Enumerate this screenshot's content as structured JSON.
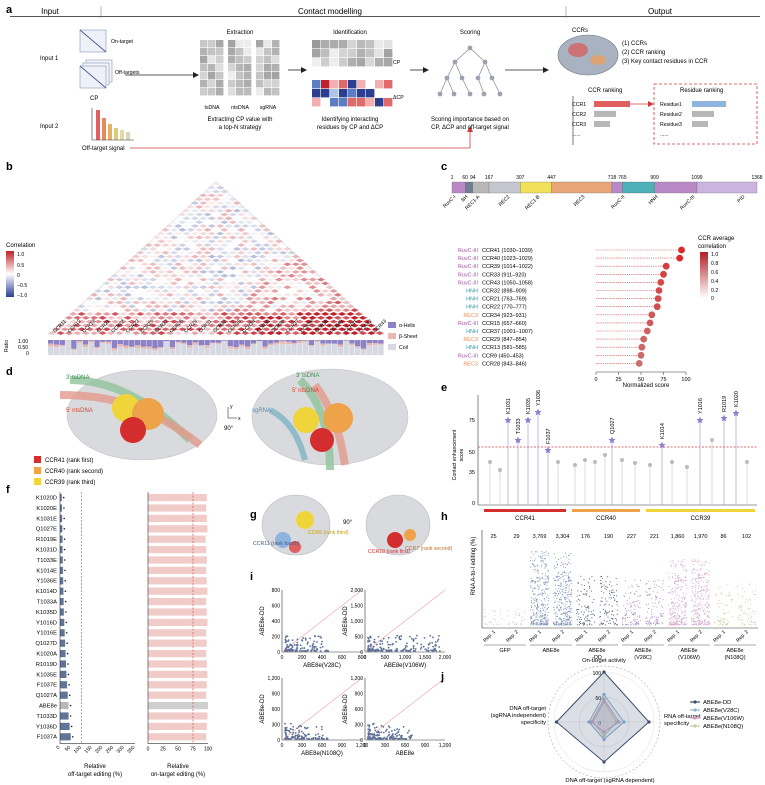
{
  "panel_a": {
    "letter": "a",
    "headers": {
      "input": "Input",
      "contact_modelling": "Contact modelling",
      "output": "Output"
    },
    "input1_label": "Input 1",
    "input2_label": "Input 2",
    "on_target": "On-target",
    "off_targets": "Off-targets",
    "cp": "CP",
    "off_target_signal": "Off-target signal",
    "extraction_title": "Extraction",
    "extraction_cols": [
      "tsDNA",
      "ntsDNA",
      "sgRNA"
    ],
    "extraction_caption": [
      "Extracting CP value with",
      "a top-N strategy"
    ],
    "identification_title": "Identification",
    "identification_cp": "CP",
    "identification_dcp": "ΔCP",
    "identification_caption": [
      "Identifying interacting",
      "residues by CP and ΔCP"
    ],
    "scoring_title": "Scoring",
    "scoring_caption": [
      "Scoring importance based on",
      "CP, ΔCP and off-target signal"
    ],
    "ccrs_label": "CCRs",
    "outputs": [
      "(1) CCRs",
      "(2) CCR ranking",
      "(3) Key contact residues in CCR"
    ],
    "ccr_ranking_title": "CCR ranking",
    "residue_ranking_title": "Residue ranking",
    "ccr_items": [
      "CCR1",
      "CCR2",
      "CCR3",
      "......"
    ],
    "residue_items": [
      "Residue1",
      "Residue2",
      "Residue3",
      "......"
    ]
  },
  "panel_b": {
    "letter": "b",
    "legend_title": "Correlation",
    "legend_ticks": [
      "1.0",
      "0.5",
      "0",
      "−0.5",
      "−1.0"
    ],
    "ccr_labels": [
      "CCR11",
      "CCR12",
      "CCR13",
      "CCR21",
      "CCR22",
      "CCR23",
      "CCR25",
      "CCR27",
      "CCR28",
      "CCR29",
      "CCR31",
      "CCR32",
      "CCR33",
      "CCR34",
      "CCR35",
      "CCR36",
      "CCR37",
      "CCR38",
      "CCR39",
      "CCR40",
      "CCR41",
      "CCR42",
      "CCR43"
    ],
    "ratio_label": "Ratio",
    "ratio_ticks": [
      "1.00",
      "0.50",
      "0"
    ],
    "ss_legend": [
      "α-Helix",
      "β-Sheet",
      "Coil"
    ]
  },
  "panel_c": {
    "letter": "c",
    "domain_positions": [
      "1",
      "60",
      "94",
      "167",
      "307",
      "447",
      "718",
      "765",
      "909",
      "1099",
      "1368"
    ],
    "domains": [
      {
        "name": "RuvC-I",
        "color": "#b889c6"
      },
      {
        "name": "BH",
        "color": "#6f7f8f"
      },
      {
        "name": "REC1-A",
        "color": "#b8b8b8"
      },
      {
        "name": "REC2",
        "color": "#c4c7cf"
      },
      {
        "name": "REC1-B",
        "color": "#f0e05a"
      },
      {
        "name": "REC3",
        "color": "#e8a577"
      },
      {
        "name": "RuvC-II",
        "color": "#b889c6"
      },
      {
        "name": "HNH",
        "color": "#4bb0b8"
      },
      {
        "name": "RuvC-III",
        "color": "#b889c6"
      },
      {
        "name": "PID",
        "color": "#cbb4e0"
      }
    ],
    "rows": [
      {
        "domain": "RuvC-III",
        "label": "CCR41 (1030–1039)",
        "score": 95
      },
      {
        "domain": "RuvC-III",
        "label": "CCR40 (1023–1029)",
        "score": 93
      },
      {
        "domain": "RuvC-III",
        "label": "CCR39 (1014–1022)",
        "score": 78
      },
      {
        "domain": "RuvC-III",
        "label": "CCR33 (911–920)",
        "score": 75
      },
      {
        "domain": "RuvC-III",
        "label": "CCR43 (1050–1058)",
        "score": 72
      },
      {
        "domain": "HNH",
        "label": "CCR32 (898–909)",
        "score": 70
      },
      {
        "domain": "HNH",
        "label": "CCR21 (763–769)",
        "score": 69
      },
      {
        "domain": "HNH",
        "label": "CCR22 (770–777)",
        "score": 68
      },
      {
        "domain": "REC3",
        "label": "CCR34 (923–931)",
        "score": 62
      },
      {
        "domain": "RuvC-III",
        "label": "CCR15 (657–660)",
        "score": 60
      },
      {
        "domain": "HNH",
        "label": "CCR37 (1001–1007)",
        "score": 57
      },
      {
        "domain": "REC3",
        "label": "CCR29 (847–854)",
        "score": 53
      },
      {
        "domain": "HNH",
        "label": "CCR13 (581–585)",
        "score": 51
      },
      {
        "domain": "RuvC-III",
        "label": "CCR9 (450–453)",
        "score": 50
      },
      {
        "domain": "REC3",
        "label": "CCR28 (843–846)",
        "score": 48
      }
    ],
    "domain_colors": {
      "RuvC-III": "#a0529d",
      "HNH": "#2e9fa9",
      "REC3": "#e5915c"
    },
    "xlabel": "Normalized score",
    "xticks": [
      "0",
      "25",
      "50",
      "75",
      "100"
    ],
    "legend_title": [
      "CCR average",
      "correlation"
    ],
    "legend_ticks": [
      "1.0",
      "0.8",
      "0.6",
      "0.4",
      "0.2",
      "0"
    ]
  },
  "panel_d": {
    "letter": "d",
    "strands": [
      "3′ tsDNA",
      "5′ ntsDNA",
      "sgRNA"
    ],
    "legend": [
      "CCR41 (rank first)",
      "CCR40 (rank second)",
      "CCR39 (rank third)"
    ],
    "rotation": "90°",
    "axis_x": "x",
    "axis_y": "y"
  },
  "panel_e": {
    "letter": "e",
    "ylabel": [
      "Contact enhancement",
      "score"
    ],
    "yticks": [
      "75",
      "50",
      "35",
      "0"
    ],
    "highlight_labels": [
      "K1031",
      "T1033",
      "K1035",
      "Y1036",
      "F1037",
      "Q1027",
      "K1014",
      "Y1016",
      "R1019",
      "K1020"
    ],
    "groups": [
      "CCR41",
      "CCR40",
      "CCR39"
    ]
  },
  "panel_f": {
    "letter": "f",
    "variants": [
      "K1020D",
      "K1020E",
      "K1031E",
      "Q1027E",
      "R1019E",
      "K1031D",
      "T1033E",
      "K1014E",
      "Y1036E",
      "K1014D",
      "T1033A",
      "K1035D",
      "Y1016D",
      "Y1016E",
      "Q1027D",
      "K1020A",
      "R1019D",
      "K1035E",
      "F1037E",
      "Q1027A",
      "ABE8e",
      "T1033D",
      "Y1036D",
      "F1037A"
    ],
    "off_target_values": [
      8,
      9,
      10,
      11,
      12,
      12,
      13,
      14,
      15,
      16,
      17,
      18,
      20,
      22,
      24,
      26,
      28,
      30,
      33,
      36,
      40,
      40,
      45,
      50
    ],
    "off_target_xlabel": [
      "Relative",
      "off-target editing (%)"
    ],
    "off_target_xticks": [
      "0",
      "50",
      "100",
      "150",
      "200",
      "250",
      "300",
      "350"
    ],
    "on_target_values": [
      98,
      97,
      98,
      99,
      96,
      97,
      98,
      97,
      98,
      99,
      97,
      98,
      99,
      97,
      98,
      97,
      98,
      99,
      98,
      97,
      100,
      99,
      98,
      97
    ],
    "on_target_xlabel": [
      "Relative",
      "on-target editing (%)"
    ],
    "on_target_xticks": [
      "0",
      "25",
      "50",
      "75",
      "100"
    ]
  },
  "panel_g": {
    "letter": "g",
    "labels": [
      "CCR11 (rank fourth)",
      "CCR5 (rank third)",
      "CCR10 (rank first)",
      "CCR7 (rank second)"
    ],
    "rotation": "90°"
  },
  "panel_h": {
    "letter": "h",
    "ylabel": "RNA A-to-I editing (%)",
    "counts": [
      "25",
      "29",
      "3,769",
      "3,304",
      "176",
      "190",
      "227",
      "221",
      "1,860",
      "1,970",
      "86",
      "102"
    ],
    "reps": [
      "Rep. 1",
      "Rep. 2"
    ],
    "groups": [
      "GFP",
      "ABE8e",
      "ABE8e -DD",
      "ABE8e (V28C)",
      "ABE8e (V106W)",
      "ABE8e (N108Q)"
    ]
  },
  "panel_i": {
    "letter": "i",
    "plots": [
      {
        "ylabel": "ABE8e-DD",
        "xlabel": "ABE8e(V28C)",
        "ticks": [
          "0",
          "200",
          "400",
          "600",
          "800"
        ]
      },
      {
        "ylabel": "ABE8e-DD",
        "xlabel": "ABE8e(V106W)",
        "ticks": [
          "0",
          "500",
          "1,000",
          "1,500",
          "2,000"
        ]
      },
      {
        "ylabel": "ABE8e-DD",
        "xlabel": "ABE8e(N108Q)",
        "ticks": [
          "0",
          "300",
          "600",
          "900",
          "1,200"
        ]
      },
      {
        "ylabel": "ABE8e-DD",
        "xlabel": "ABE8e",
        "ticks": [
          "0",
          "300",
          "600",
          "900",
          "1,200"
        ]
      }
    ]
  },
  "panel_j": {
    "letter": "j",
    "axes": [
      "On-target activity",
      "RNA off-target specificity",
      "DNA off-target (sgRNA dependent) specificity",
      "DNA off-target (sgRNA independent) specificity"
    ],
    "axis_lines": [
      [
        "On-target activity"
      ],
      [
        "RNA off-target",
        "specificity"
      ],
      [
        "DNA off-target (sgRNA dependent)",
        "specificity"
      ],
      [
        "DNA off-target",
        "(sgRNA independent)",
        "specificity"
      ]
    ],
    "ring_labels": [
      "100",
      "50",
      "0"
    ],
    "series": [
      {
        "name": "ABE8e-DD",
        "color": "#3a4f6e",
        "values": [
          100,
          90,
          80,
          95
        ]
      },
      {
        "name": "ABE8e(V28C)",
        "color": "#8db3cf",
        "values": [
          55,
          40,
          35,
          30
        ]
      },
      {
        "name": "ABE8e(V106W)",
        "color": "#d09bc3",
        "values": [
          45,
          30,
          20,
          25
        ]
      },
      {
        "name": "ABE8e(N108Q)",
        "color": "#c7c9a3",
        "values": [
          40,
          25,
          28,
          22
        ]
      }
    ]
  }
}
